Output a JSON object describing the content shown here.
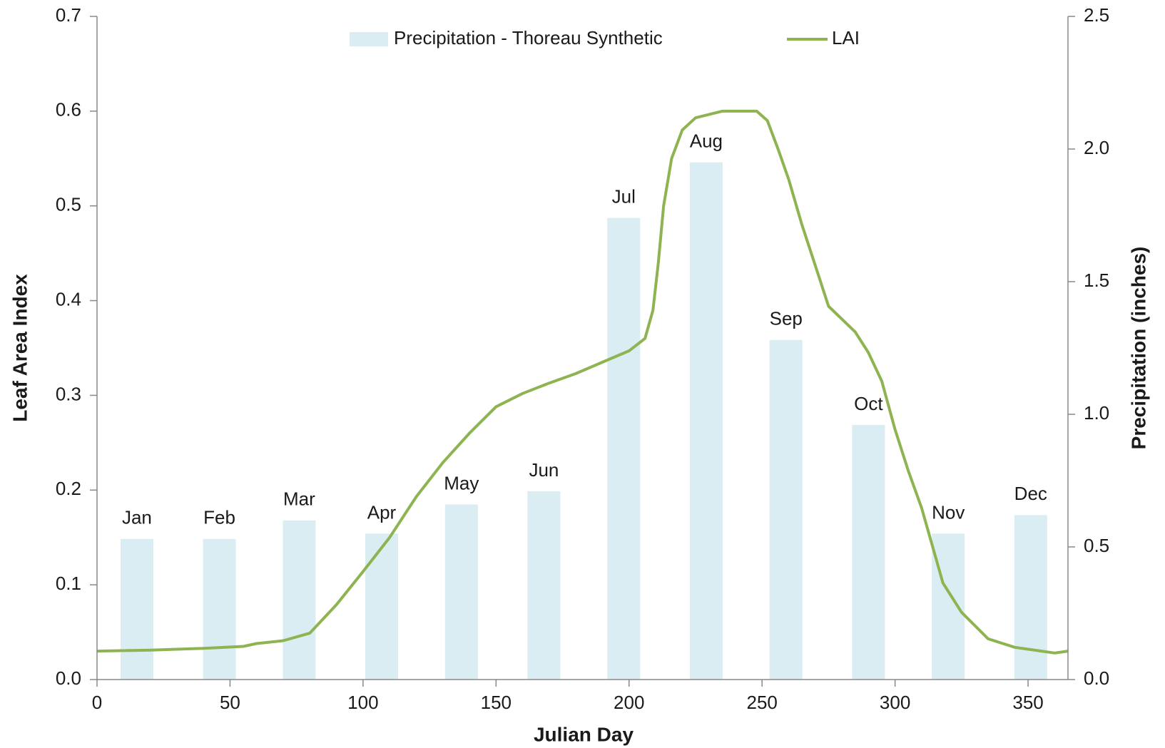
{
  "chart_data": {
    "type": "combo",
    "xlabel": "Julian Day",
    "ylabel": "Leaf Area Index",
    "y2label": "Precipitation (inches)",
    "xlim": [
      0,
      365
    ],
    "xticks": [
      0,
      50,
      100,
      150,
      200,
      250,
      300,
      350
    ],
    "ylim": [
      0,
      0.7
    ],
    "yticks": [
      {
        "value": 0,
        "label": "0.0"
      },
      0.1,
      0.2,
      0.3,
      0.4,
      0.5,
      0.6,
      0.7
    ],
    "y2lim": [
      0,
      2.5
    ],
    "y2ticks": [
      {
        "value": 0,
        "label": "0.0"
      },
      0.5,
      {
        "value": 1,
        "label": "1.0"
      },
      1.5,
      {
        "value": 2,
        "label": "2.0"
      },
      2.5
    ],
    "legend": "top",
    "series": [
      {
        "name": "Precipitation - Thoreau Synthetic",
        "type": "bar",
        "axis": "y2",
        "color": "#daedf3",
        "x": [
          15,
          46,
          76,
          107,
          137,
          168,
          198,
          229,
          259,
          290,
          320,
          351
        ],
        "values": [
          0.53,
          0.53,
          0.6,
          0.55,
          0.66,
          0.71,
          1.74,
          1.95,
          1.28,
          0.96,
          0.55,
          0.62
        ],
        "labels": [
          "Jan",
          "Feb",
          "Mar",
          "Apr",
          "May",
          "Jun",
          "Jul",
          "Aug",
          "Sep",
          "Oct",
          "Nov",
          "Dec"
        ]
      },
      {
        "name": "LAI",
        "type": "line",
        "color": "#8db451",
        "x": [
          0,
          20,
          40,
          55,
          60,
          70,
          80,
          90,
          100,
          110,
          120,
          130,
          140,
          150,
          160,
          170,
          180,
          190,
          200,
          206,
          209,
          211,
          213,
          216,
          220,
          225,
          235,
          248,
          252,
          256,
          260,
          265,
          270,
          275,
          285,
          290,
          295,
          300,
          305,
          310,
          318,
          325,
          335,
          345,
          355,
          360,
          365
        ],
        "values": [
          0.03,
          0.031,
          0.033,
          0.035,
          0.038,
          0.041,
          0.049,
          0.079,
          0.114,
          0.15,
          0.193,
          0.229,
          0.26,
          0.288,
          0.302,
          0.313,
          0.323,
          0.335,
          0.347,
          0.36,
          0.39,
          0.44,
          0.5,
          0.55,
          0.58,
          0.593,
          0.6,
          0.6,
          0.59,
          0.56,
          0.528,
          0.48,
          0.437,
          0.394,
          0.367,
          0.345,
          0.315,
          0.264,
          0.22,
          0.181,
          0.102,
          0.071,
          0.043,
          0.034,
          0.03,
          0.028,
          0.03
        ]
      }
    ]
  }
}
